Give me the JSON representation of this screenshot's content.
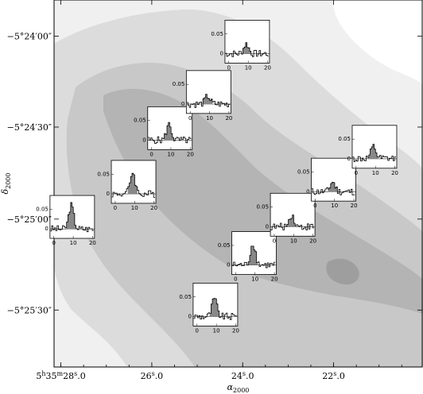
{
  "chart_data": {
    "type": "contour-map-with-spectra",
    "x_axis": {
      "label_main": "α",
      "label_sub": "2000",
      "ticks": [
        {
          "label_parts": [
            "5",
            "h",
            "35",
            "m",
            "28",
            "s",
            ".0"
          ],
          "value": 28.0
        },
        {
          "label_parts": [
            "26",
            "s",
            ".0"
          ],
          "value": 26.0
        },
        {
          "label_parts": [
            "24",
            "s",
            ".0"
          ],
          "value": 24.0
        },
        {
          "label_parts": [
            "22",
            "s",
            ".0"
          ],
          "value": 22.0
        }
      ],
      "range_seconds": [
        28.15,
        20.05
      ]
    },
    "y_axis": {
      "label_main": "δ",
      "label_sub": "2000",
      "ticks": [
        {
          "label": "−5°24′00″",
          "value": -5.4
        },
        {
          "label": "−5°24′30″",
          "value": -5.4083
        },
        {
          "label": "−5°25′00″",
          "value": -5.4167
        },
        {
          "label": "−5°25′30″",
          "value": -5.425
        }
      ]
    },
    "contour_levels": 5,
    "contour_colors": [
      "#f0f0f0",
      "#dcdcdc",
      "#c8c8c8",
      "#b4b4b4",
      "#9e9e9e"
    ],
    "inset_spectra": {
      "x_ticks": [
        "0",
        "10",
        "20"
      ],
      "x_range": [
        -2,
        21
      ],
      "y_tick_label": "0.05",
      "y_zero_label": "0",
      "positions": [
        {
          "id": "s1",
          "x_label": "0",
          "y_label": "0.05",
          "peak": 0.06,
          "ra": 27.75,
          "dec": -5.4165
        },
        {
          "id": "s2",
          "x_label": "0",
          "y_label": "0.05",
          "peak": 0.055,
          "ra": 26.4,
          "dec": -5.4133
        },
        {
          "id": "s3",
          "x_label": "0",
          "y_label": "0.05",
          "peak": 0.04,
          "ra": 25.6,
          "dec": -5.4084
        },
        {
          "id": "s4",
          "x_label": "0",
          "y_label": "0.05",
          "peak": 0.02,
          "ra": 24.75,
          "dec": -5.4051
        },
        {
          "id": "s5",
          "x_label": "0",
          "y_label": "0.05",
          "peak": 0.025,
          "ra": 23.9,
          "dec": -5.4005
        },
        {
          "id": "s6",
          "x_label": "0",
          "y_label": "0.05",
          "peak": 0.055,
          "ra": 23.75,
          "dec": -5.4198
        },
        {
          "id": "s7",
          "x_label": "0",
          "y_label": "0.05",
          "peak": 0.045,
          "ra": 24.6,
          "dec": -5.4245
        },
        {
          "id": "s8",
          "x_label": "0",
          "y_label": "0.05",
          "peak": 0.03,
          "ra": 22.9,
          "dec": -5.4163
        },
        {
          "id": "s9",
          "x_label": "0",
          "y_label": "0.05",
          "peak": 0.025,
          "ra": 22.0,
          "dec": -5.4131
        },
        {
          "id": "s10",
          "x_label": "0",
          "y_label": "0.05",
          "peak": 0.03,
          "ra": 21.1,
          "dec": -5.4101
        }
      ]
    }
  }
}
